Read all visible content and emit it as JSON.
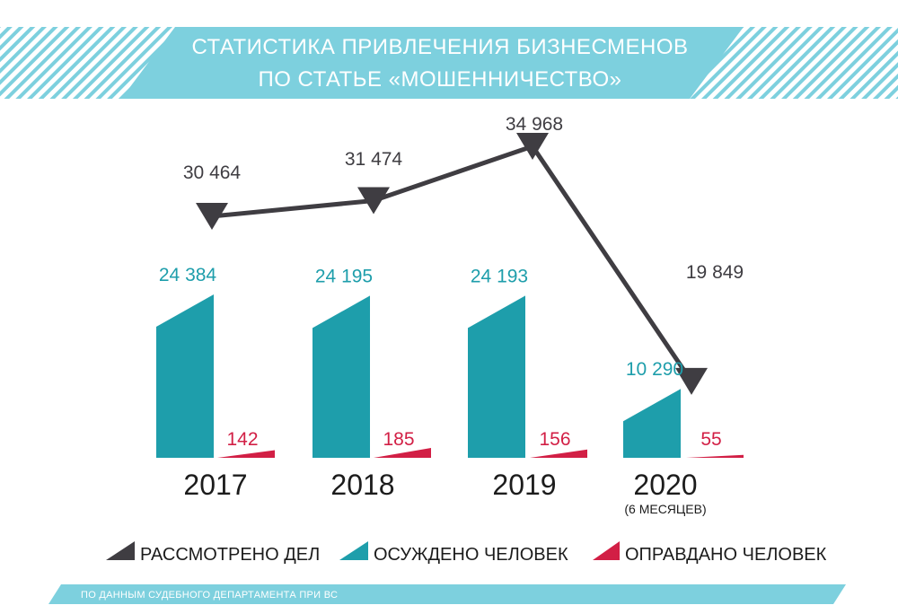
{
  "title": {
    "line1": "СТАТИСТИКА ПРИВЛЕЧЕНИЯ БИЗНЕСМЕНОВ",
    "line2": "ПО СТАТЬЕ «МОШЕННИЧЕСТВО»"
  },
  "colors": {
    "banner": "#7dd0de",
    "considered": "#3f3d42",
    "convicted": "#1e9eab",
    "acquitted": "#d21f45"
  },
  "chart_data": {
    "type": "bar",
    "categories": [
      "2017",
      "2018",
      "2019",
      "2020"
    ],
    "category_notes": [
      "",
      "",
      "",
      "(6 МЕСЯЦЕВ)"
    ],
    "series": [
      {
        "name": "РАССМОТРЕНО ДЕЛ",
        "render": "line",
        "values": [
          30464,
          31474,
          34968,
          19849
        ],
        "labels": [
          "30 464",
          "31 474",
          "34 968",
          "19 849"
        ]
      },
      {
        "name": "ОСУЖДЕНО ЧЕЛОВЕК",
        "render": "bar",
        "values": [
          24384,
          24195,
          24193,
          10290
        ],
        "labels": [
          "24 384",
          "24 195",
          "24 193",
          "10 290"
        ]
      },
      {
        "name": "ОПРАВДАНО ЧЕЛОВЕК",
        "render": "bar",
        "values": [
          142,
          185,
          156,
          55
        ],
        "labels": [
          "142",
          "185",
          "156",
          "55"
        ]
      }
    ],
    "legend_position": "bottom",
    "grid": false
  },
  "source": "ПО ДАННЫМ СУДЕБНОГО ДЕПАРТАМЕНТА ПРИ ВС"
}
